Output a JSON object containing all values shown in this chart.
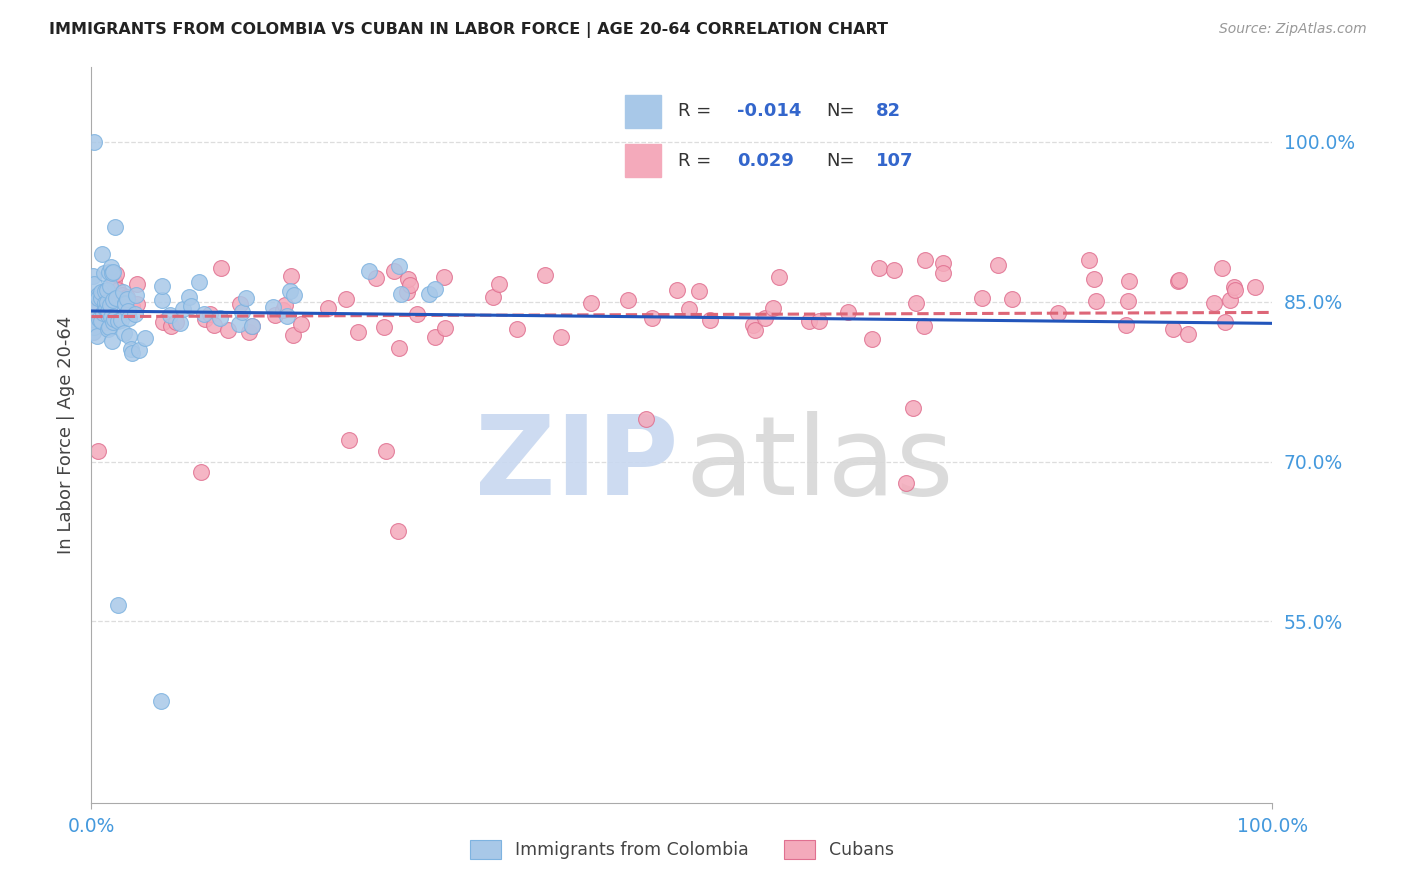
{
  "title": "IMMIGRANTS FROM COLOMBIA VS CUBAN IN LABOR FORCE | AGE 20-64 CORRELATION CHART",
  "source": "Source: ZipAtlas.com",
  "ylabel": "In Labor Force | Age 20-64",
  "xlim": [
    0.0,
    1.0
  ],
  "ylim": [
    0.38,
    1.07
  ],
  "yticks": [
    0.55,
    0.7,
    0.85,
    1.0
  ],
  "ytick_labels": [
    "55.0%",
    "70.0%",
    "85.0%",
    "100.0%"
  ],
  "xtick_labels": [
    "0.0%",
    "100.0%"
  ],
  "colombia_R": -0.014,
  "colombia_N": 82,
  "cuban_R": 0.029,
  "cuban_N": 107,
  "colombia_color": "#A8C8E8",
  "cuban_color": "#F4AABB",
  "colombia_edge_color": "#7EB3E0",
  "cuban_edge_color": "#E07090",
  "colombia_line_color": "#2255BB",
  "cuban_line_color": "#DD6677",
  "legend_text_color": "#3366CC",
  "legend_r_label_color": "#333333",
  "watermark_zip_color": "#C8D8F0",
  "watermark_atlas_color": "#D8D8D8",
  "axis_color": "#AAAAAA",
  "grid_color": "#DDDDDD",
  "title_color": "#222222",
  "source_color": "#999999",
  "ylabel_color": "#444444",
  "tick_color": "#4499DD"
}
